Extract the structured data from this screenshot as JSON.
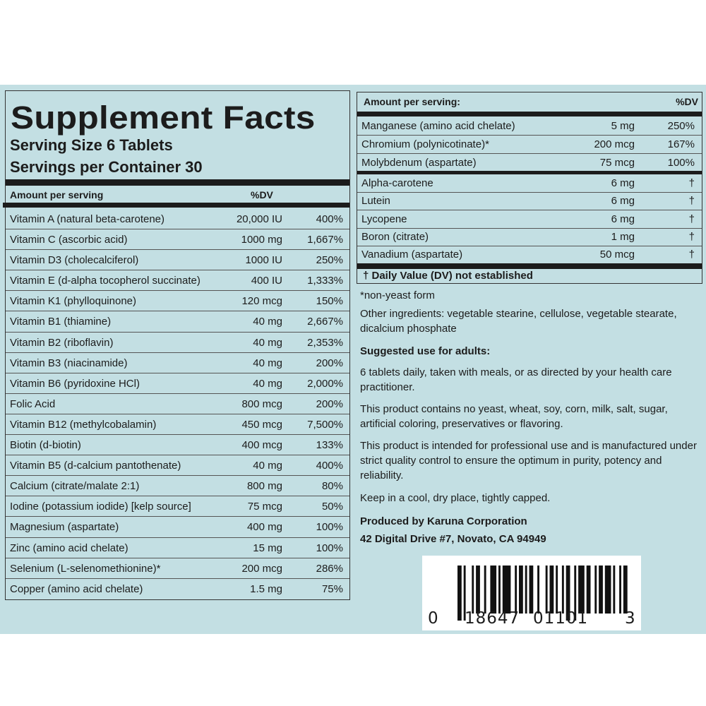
{
  "header": {
    "title": "Supplement Facts",
    "serving_size": "Serving Size  6 Tablets",
    "servings_per_container": "Servings per Container  30"
  },
  "left_table": {
    "col_amount": "Amount per serving",
    "col_dv": "%DV",
    "rows": [
      {
        "name": "Vitamin A (natural beta-carotene)",
        "amount": "20,000 IU",
        "dv": "400%"
      },
      {
        "name": "Vitamin C (ascorbic acid)",
        "amount": "1000 mg",
        "dv": "1,667%"
      },
      {
        "name": "Vitamin D3 (cholecalciferol)",
        "amount": "1000 IU",
        "dv": "250%"
      },
      {
        "name": "Vitamin E (d-alpha tocopherol succinate)",
        "amount": "400 IU",
        "dv": "1,333%"
      },
      {
        "name": "Vitamin K1 (phylloquinone)",
        "amount": "120 mcg",
        "dv": "150%"
      },
      {
        "name": "Vitamin B1 (thiamine)",
        "amount": "40 mg",
        "dv": "2,667%"
      },
      {
        "name": "Vitamin B2 (riboflavin)",
        "amount": "40 mg",
        "dv": "2,353%"
      },
      {
        "name": "Vitamin B3 (niacinamide)",
        "amount": "40 mg",
        "dv": "200%"
      },
      {
        "name": "Vitamin B6 (pyridoxine HCl)",
        "amount": "40 mg",
        "dv": "2,000%"
      },
      {
        "name": "Folic Acid",
        "amount": "800 mcg",
        "dv": "200%"
      },
      {
        "name": "Vitamin B12 (methylcobalamin)",
        "amount": "450 mcg",
        "dv": "7,500%"
      },
      {
        "name": "Biotin (d-biotin)",
        "amount": "400 mcg",
        "dv": "133%"
      },
      {
        "name": "Vitamin B5 (d-calcium pantothenate)",
        "amount": "40 mg",
        "dv": "400%"
      },
      {
        "name": "Calcium (citrate/malate 2:1)",
        "amount": "800 mg",
        "dv": "80%"
      },
      {
        "name": "Iodine (potassium iodide) [kelp source]",
        "amount": "75 mcg",
        "dv": "50%"
      },
      {
        "name": "Magnesium (aspartate)",
        "amount": "400 mg",
        "dv": "100%"
      },
      {
        "name": "Zinc (amino acid chelate)",
        "amount": "15 mg",
        "dv": "100%"
      },
      {
        "name": "Selenium (L-selenomethionine)*",
        "amount": "200 mcg",
        "dv": "286%"
      },
      {
        "name": "Copper (amino acid chelate)",
        "amount": "1.5 mg",
        "dv": "75%"
      }
    ]
  },
  "right_table": {
    "col_amount": "Amount per serving:",
    "col_dv": "%DV",
    "rows": [
      {
        "name": "Manganese (amino acid chelate)",
        "amount": "5 mg",
        "dv": "250%"
      },
      {
        "name": "Chromium (polynicotinate)*",
        "amount": "200 mcg",
        "dv": "167%"
      },
      {
        "name": "Molybdenum (aspartate)",
        "amount": "75 mcg",
        "dv": "100%"
      },
      {
        "name": "Alpha-carotene",
        "amount": "6 mg",
        "dv": "†"
      },
      {
        "name": "Lutein",
        "amount": "6 mg",
        "dv": "†"
      },
      {
        "name": "Lycopene",
        "amount": "6 mg",
        "dv": "†"
      },
      {
        "name": "Boron (citrate)",
        "amount": "1 mg",
        "dv": "†"
      },
      {
        "name": "Vanadium (aspartate)",
        "amount": "50 mcg",
        "dv": "†"
      }
    ],
    "footnote": "†  Daily Value (DV) not established"
  },
  "notes": {
    "yeast": "*non-yeast form",
    "other": "Other ingredients: vegetable stearine, cellulose, vegetable stearate, dicalcium phosphate",
    "use_heading": "Suggested use for adults:",
    "use": "6 tablets daily, taken with meals, or as directed by your health care practitioner.",
    "free_from": "This product contains no yeast, wheat, soy, corn, milk, salt, sugar, artificial coloring, preservatives or flavoring.",
    "professional": "This product is intended for professional use and is manufactured under strict quality control to ensure the optimum in purity, potency and reliability.",
    "storage": "Keep in a cool, dry place, tightly capped.",
    "producer": "Produced by Karuna Corporation",
    "address": "42 Digital Drive #7, Novato, CA 94949"
  },
  "barcode": {
    "d1": "0",
    "d2": "18647",
    "d3": "01101",
    "d4": "3"
  }
}
